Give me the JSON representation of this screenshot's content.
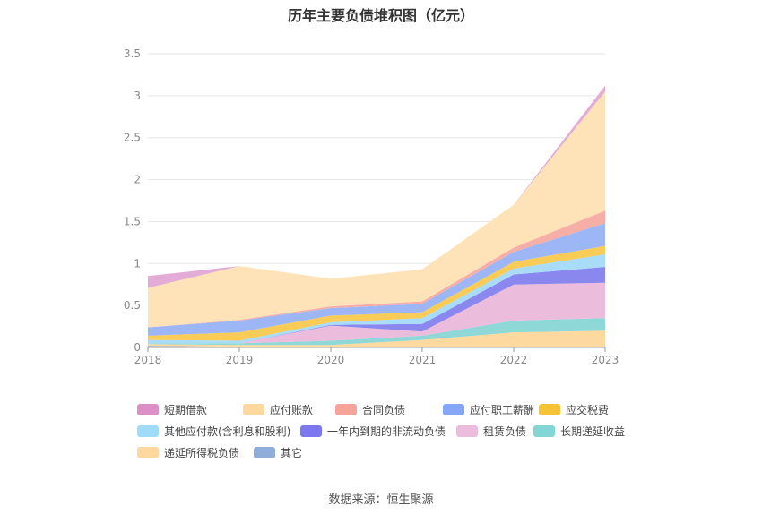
{
  "chart_data": {
    "type": "area",
    "title": "历年主要负债堆积图（亿元）",
    "x": [
      "2018",
      "2019",
      "2020",
      "2021",
      "2022",
      "2023"
    ],
    "ylim": [
      0,
      3.5
    ],
    "yticks": [
      "0",
      "0.5",
      "1",
      "1.5",
      "2",
      "2.5",
      "3",
      "3.5"
    ],
    "stacked": true,
    "series": [
      {
        "name": "其它",
        "color": "#8fadd8",
        "values": [
          0.02,
          0.01,
          0.01,
          0.01,
          0.01,
          0.01
        ]
      },
      {
        "name": "递延所得税负债",
        "color": "#fdd9a0",
        "values": [
          0.02,
          0.02,
          0.02,
          0.08,
          0.17,
          0.19
        ]
      },
      {
        "name": "长期递延收益",
        "color": "#8ed8d8",
        "values": [
          0.01,
          0.02,
          0.05,
          0.05,
          0.14,
          0.15
        ]
      },
      {
        "name": "租赁负债",
        "color": "#ebbcdc",
        "values": [
          0.0,
          0.0,
          0.18,
          0.05,
          0.43,
          0.42
        ]
      },
      {
        "name": "一年内到期的非流动负债",
        "color": "#8a87ee",
        "values": [
          0.0,
          0.0,
          0.01,
          0.09,
          0.12,
          0.19
        ]
      },
      {
        "name": "其他应付款(含利息和股利)",
        "color": "#a8dcf8",
        "values": [
          0.04,
          0.03,
          0.03,
          0.07,
          0.07,
          0.15
        ]
      },
      {
        "name": "应交税费",
        "color": "#f9cc58",
        "values": [
          0.05,
          0.1,
          0.08,
          0.07,
          0.08,
          0.1
        ]
      },
      {
        "name": "应付职工薪酬",
        "color": "#9db6f6",
        "values": [
          0.1,
          0.14,
          0.09,
          0.1,
          0.12,
          0.27
        ]
      },
      {
        "name": "合同负债",
        "color": "#f6aea6",
        "values": [
          0.0,
          0.01,
          0.02,
          0.03,
          0.05,
          0.15
        ]
      },
      {
        "name": "应付账款",
        "color": "#fee3b8",
        "values": [
          0.47,
          0.64,
          0.33,
          0.38,
          0.51,
          1.42
        ]
      },
      {
        "name": "短期借款",
        "color": "#e3acd6",
        "values": [
          0.14,
          0.0,
          0.0,
          0.0,
          0.0,
          0.07
        ]
      }
    ]
  },
  "legend": [
    {
      "name": "短期借款",
      "color": "#dd8fc7"
    },
    {
      "name": "应付账款",
      "color": "#fdd9a0"
    },
    {
      "name": "合同负债",
      "color": "#f6a39a"
    },
    {
      "name": "应付职工薪酬",
      "color": "#86a7f6"
    },
    {
      "name": "应交税费",
      "color": "#f6c237"
    },
    {
      "name": "其他应付款(含利息和股利)",
      "color": "#a0dcfa"
    },
    {
      "name": "一年内到期的非流动负债",
      "color": "#7b78ef"
    },
    {
      "name": "租赁负债",
      "color": "#ebbcdc"
    },
    {
      "name": "长期递延收益",
      "color": "#84d6d6"
    },
    {
      "name": "递延所得税负债",
      "color": "#fdd9a0"
    },
    {
      "name": "其它",
      "color": "#8fadd8"
    }
  ],
  "source": "数据来源：恒生聚源"
}
